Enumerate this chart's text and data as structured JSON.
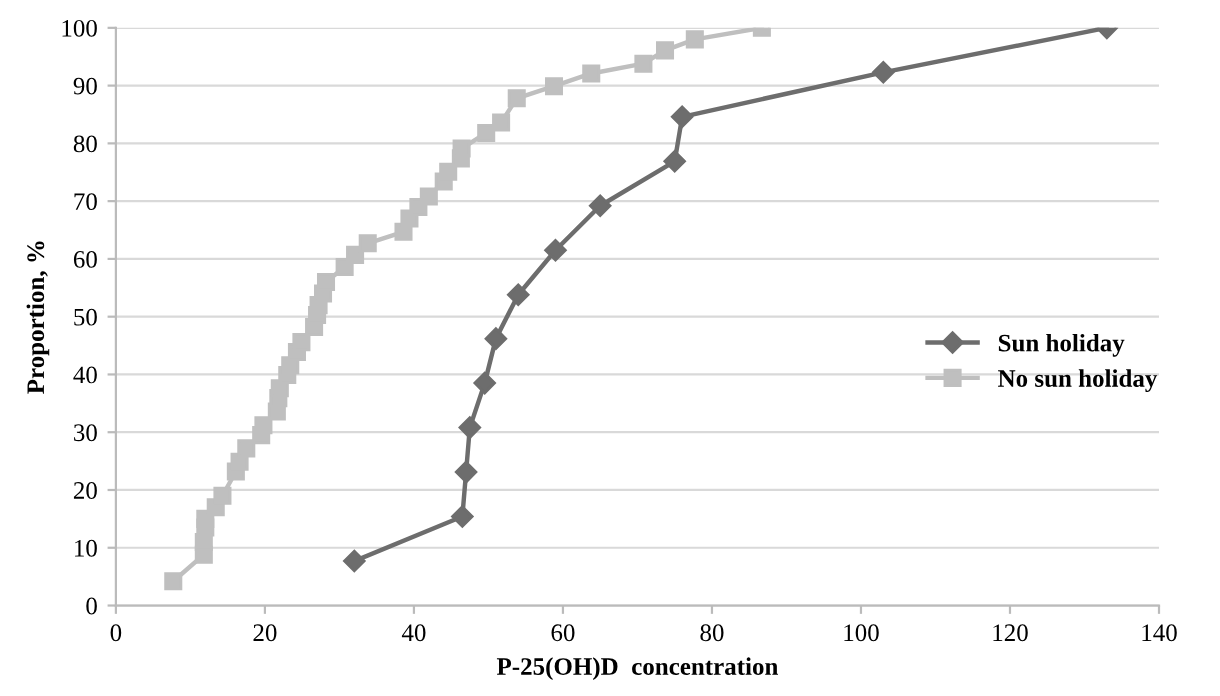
{
  "chart_data": {
    "type": "line",
    "xlabel": "P-25(OH)D  concentration",
    "ylabel": "Proportion, %",
    "xlim": [
      0,
      140
    ],
    "xticks": [
      0,
      20,
      40,
      60,
      80,
      100,
      120,
      140
    ],
    "ylim": [
      0,
      100
    ],
    "yticks": [
      0,
      10,
      20,
      30,
      40,
      50,
      60,
      70,
      80,
      90,
      100
    ],
    "grid": "y",
    "legend": "right",
    "series": [
      {
        "name": "Sun holiday",
        "color": "#6d6d6d",
        "marker": "diamond",
        "x": [
          32,
          46.5,
          47,
          47.5,
          49.5,
          51,
          54,
          59,
          65,
          75,
          76,
          103,
          133
        ],
        "values": [
          7.7,
          15.4,
          23.1,
          30.8,
          38.5,
          46.2,
          53.8,
          61.5,
          69.2,
          76.9,
          84.6,
          92.3,
          100
        ]
      },
      {
        "name": "No sun holiday",
        "color": "#bfbfbf",
        "marker": "square",
        "x": [
          7.7,
          11.8,
          11.8,
          12,
          12,
          13.4,
          14.3,
          16.1,
          16.6,
          17.5,
          19.5,
          19.8,
          21.6,
          21.8,
          22,
          23,
          23.4,
          24.3,
          24.9,
          26.6,
          27,
          27.2,
          27.8,
          28.2,
          30.7,
          32.1,
          33.8,
          38.6,
          39.4,
          40.6,
          42,
          44,
          44.6,
          46.3,
          46.4,
          49.7,
          51.7,
          53.8,
          58.8,
          63.8,
          70.8,
          73.7,
          77.7,
          86.7
        ],
        "values": [
          4.2,
          8.8,
          11,
          13.5,
          15,
          17,
          19,
          23.2,
          24.9,
          27.2,
          29.5,
          31.2,
          33.6,
          35.9,
          37.6,
          39.9,
          41.6,
          43.9,
          45.6,
          48.2,
          50.3,
          52,
          54,
          56,
          58.6,
          60.7,
          62.7,
          64.7,
          67,
          69,
          70.8,
          73.4,
          75.1,
          77.4,
          79.1,
          81.8,
          83.6,
          87.8,
          89.9,
          92.1,
          93.8,
          96.1,
          98,
          100
        ]
      }
    ]
  }
}
